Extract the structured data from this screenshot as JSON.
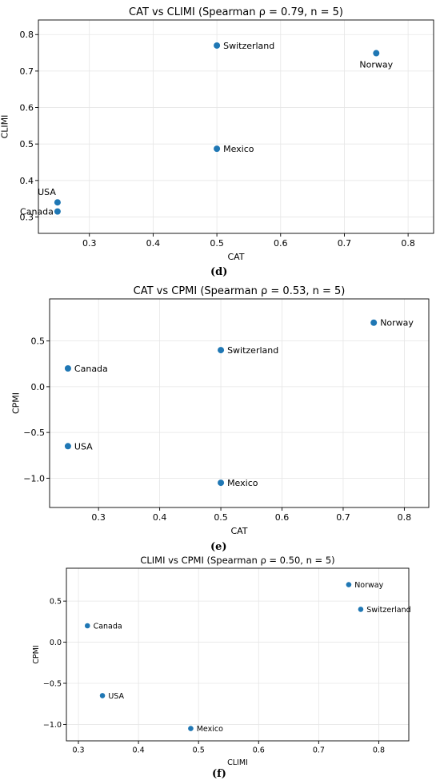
{
  "panels": [
    {
      "label": "(d)"
    },
    {
      "label": "(e)"
    },
    {
      "label": "(f)"
    }
  ],
  "colors": {
    "marker": "#1f77b4",
    "grid": "#e6e6e6",
    "axis": "#000000"
  },
  "chart_data": [
    {
      "type": "scatter",
      "title": "CAT vs CLIMI (Spearman ρ = 0.79, n = 5)",
      "xlabel": "CAT",
      "ylabel": "CLIMI",
      "xlim": [
        0.22,
        0.84
      ],
      "ylim": [
        0.255,
        0.84
      ],
      "xticks": [
        0.3,
        0.4,
        0.5,
        0.6,
        0.7,
        0.8
      ],
      "yticks": [
        0.3,
        0.4,
        0.5,
        0.6,
        0.7,
        0.8
      ],
      "grid": true,
      "points": [
        {
          "name": "Switzerland",
          "x": 0.5,
          "y": 0.77,
          "label_pos": "right"
        },
        {
          "name": "Norway",
          "x": 0.75,
          "y": 0.749,
          "label_pos": "below"
        },
        {
          "name": "Mexico",
          "x": 0.5,
          "y": 0.487,
          "label_pos": "right"
        },
        {
          "name": "USA",
          "x": 0.25,
          "y": 0.34,
          "label_pos": "above-left"
        },
        {
          "name": "Canada",
          "x": 0.25,
          "y": 0.315,
          "label_pos": "left"
        }
      ]
    },
    {
      "type": "scatter",
      "title": "CAT vs CPMI (Spearman ρ = 0.53, n = 5)",
      "xlabel": "CAT",
      "ylabel": "CPMI",
      "xlim": [
        0.22,
        0.84
      ],
      "ylim": [
        -1.32,
        0.96
      ],
      "xticks": [
        0.3,
        0.4,
        0.5,
        0.6,
        0.7,
        0.8
      ],
      "yticks": [
        -1.0,
        -0.5,
        0.0,
        0.5
      ],
      "grid": true,
      "points": [
        {
          "name": "Norway",
          "x": 0.75,
          "y": 0.7,
          "label_pos": "right"
        },
        {
          "name": "Switzerland",
          "x": 0.5,
          "y": 0.4,
          "label_pos": "right"
        },
        {
          "name": "Canada",
          "x": 0.25,
          "y": 0.2,
          "label_pos": "right"
        },
        {
          "name": "USA",
          "x": 0.25,
          "y": -0.65,
          "label_pos": "right"
        },
        {
          "name": "Mexico",
          "x": 0.5,
          "y": -1.05,
          "label_pos": "right"
        }
      ]
    },
    {
      "type": "scatter",
      "title": "CLIMI vs CPMI (Spearman ρ = 0.50, n = 5)",
      "xlabel": "CLIMI",
      "ylabel": "CPMI",
      "xlim": [
        0.28,
        0.85
      ],
      "ylim": [
        -1.2,
        0.9
      ],
      "xticks": [
        0.3,
        0.4,
        0.5,
        0.6,
        0.7,
        0.8
      ],
      "yticks": [
        -1.0,
        -0.5,
        0.0,
        0.5
      ],
      "grid": true,
      "points": [
        {
          "name": "Norway",
          "x": 0.75,
          "y": 0.7,
          "label_pos": "right"
        },
        {
          "name": "Switzerland",
          "x": 0.77,
          "y": 0.4,
          "label_pos": "right"
        },
        {
          "name": "Canada",
          "x": 0.315,
          "y": 0.2,
          "label_pos": "right"
        },
        {
          "name": "USA",
          "x": 0.34,
          "y": -0.65,
          "label_pos": "right"
        },
        {
          "name": "Mexico",
          "x": 0.487,
          "y": -1.05,
          "label_pos": "right"
        }
      ]
    }
  ]
}
